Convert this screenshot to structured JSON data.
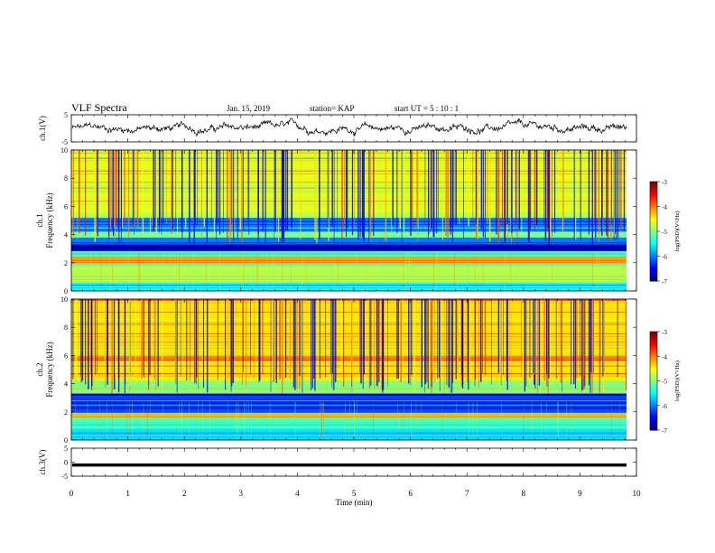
{
  "header": {
    "title": "VLF Spectra",
    "date": "Jan. 15, 2019",
    "station": "station= KAP",
    "start": "start UT =  5 : 10 : 1"
  },
  "chart_data": [
    {
      "type": "line",
      "ylabel": "ch.1(V)",
      "ylim": [
        -5,
        5
      ],
      "yticks": [
        "5",
        "-5"
      ],
      "xlim": [
        0,
        10
      ],
      "trace": "noisy waveform around 0 V, amplitude roughly ±3 V",
      "x_end": 9.8
    },
    {
      "type": "heatmap",
      "ylabel_top": "ch.1",
      "ylabel": "Frequency (kHz)",
      "ylim": [
        0,
        10
      ],
      "yticks": [
        "0",
        "2",
        "4",
        "6",
        "8",
        "10"
      ],
      "xlim": [
        0,
        9.8
      ],
      "colorbar": {
        "label": "log(PSD)(V²/Hz)",
        "range": [
          -7,
          -3
        ],
        "ticks": [
          "-3",
          "-4",
          "-5",
          "-6",
          "-7"
        ]
      },
      "bands": [
        {
          "f": [
            0.0,
            0.6
          ],
          "level": -5.5
        },
        {
          "f": [
            0.6,
            1.9
          ],
          "level": -4.8
        },
        {
          "f": [
            1.9,
            2.4
          ],
          "level": -4.2
        },
        {
          "f": [
            2.4,
            2.8
          ],
          "level": -5.2
        },
        {
          "f": [
            2.8,
            3.3
          ],
          "level": -6.9
        },
        {
          "f": [
            3.3,
            3.8
          ],
          "level": -6.0
        },
        {
          "f": [
            3.8,
            4.2
          ],
          "level": -5.0
        },
        {
          "f": [
            4.2,
            5.2
          ],
          "level": -6.0
        },
        {
          "f": [
            5.2,
            5.6
          ],
          "level": -4.8
        },
        {
          "f": [
            5.6,
            10.0
          ],
          "level": -4.6
        }
      ]
    },
    {
      "type": "heatmap",
      "ylabel_top": "ch.2",
      "ylabel": "Frequency (kHz)",
      "ylim": [
        0,
        10
      ],
      "yticks": [
        "0",
        "2",
        "4",
        "6",
        "8",
        "10"
      ],
      "xlim": [
        0,
        9.8
      ],
      "colorbar": {
        "label": "log(PSD)(V²/Hz)",
        "range": [
          -7,
          -3
        ],
        "ticks": [
          "-3",
          "-4",
          "-5",
          "-6",
          "-7"
        ]
      },
      "bands": [
        {
          "f": [
            0.0,
            0.8
          ],
          "level": -5.6
        },
        {
          "f": [
            0.8,
            1.6
          ],
          "level": -5.2
        },
        {
          "f": [
            1.6,
            1.9
          ],
          "level": -4.2
        },
        {
          "f": [
            1.9,
            2.8
          ],
          "level": -6.2
        },
        {
          "f": [
            2.8,
            3.3
          ],
          "level": -6.5
        },
        {
          "f": [
            3.3,
            4.2
          ],
          "level": -5.0
        },
        {
          "f": [
            4.2,
            10.0
          ],
          "level": -4.4
        }
      ]
    },
    {
      "type": "line",
      "ylabel": "ch.3(V)",
      "ylim": [
        -5,
        5
      ],
      "yticks": [
        "5",
        "0",
        "-5"
      ],
      "xlim": [
        0,
        10
      ],
      "trace": "flat line near -1 V",
      "value": -1.0,
      "x_end": 9.8
    }
  ],
  "xaxis": {
    "label": "Time (min)",
    "ticks": [
      "0",
      "1",
      "2",
      "3",
      "4",
      "5",
      "6",
      "7",
      "8",
      "9",
      "10"
    ],
    "range": [
      0,
      10
    ]
  },
  "colors": {
    "scale": [
      "#00007f",
      "#0000ff",
      "#007fff",
      "#00ffff",
      "#7fff7f",
      "#ffff00",
      "#ff7f00",
      "#ff0000",
      "#7f0000"
    ]
  }
}
